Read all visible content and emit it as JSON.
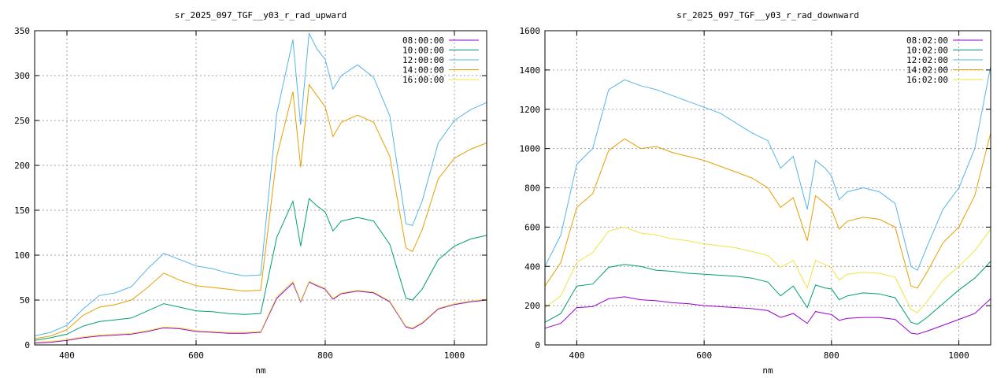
{
  "chart_data": [
    {
      "type": "line",
      "title": "sr_2025_097_TGF__y03_r_rad_upward",
      "xlabel": "nm",
      "ylabel": "",
      "xlim": [
        350,
        1050
      ],
      "ylim": [
        0,
        350
      ],
      "xticks": [
        400,
        600,
        800,
        1000
      ],
      "yticks": [
        0,
        50,
        100,
        150,
        200,
        250,
        300,
        350
      ],
      "grid": true,
      "legend": "top-right",
      "x": [
        350,
        375,
        400,
        425,
        450,
        475,
        500,
        525,
        550,
        575,
        600,
        625,
        650,
        675,
        700,
        725,
        750,
        762,
        775,
        787,
        800,
        812,
        825,
        850,
        875,
        900,
        925,
        935,
        950,
        975,
        1000,
        1025,
        1050
      ],
      "series": [
        {
          "name": "08:00:00",
          "color": "#9400d3",
          "values": [
            2,
            3,
            5,
            8,
            10,
            11,
            12,
            15,
            19,
            18,
            15,
            14,
            13,
            13,
            14,
            52,
            69,
            48,
            70,
            66,
            62,
            51,
            57,
            60,
            58,
            48,
            20,
            18,
            24,
            40,
            45,
            48,
            50
          ]
        },
        {
          "name": "10:00:00",
          "color": "#009e73",
          "values": [
            5,
            8,
            12,
            21,
            26,
            28,
            30,
            38,
            46,
            42,
            38,
            37,
            35,
            34,
            35,
            120,
            160,
            110,
            163,
            155,
            148,
            127,
            138,
            142,
            138,
            112,
            52,
            50,
            62,
            95,
            110,
            118,
            122
          ]
        },
        {
          "name": "12:00:00",
          "color": "#56b4e9",
          "values": [
            10,
            14,
            22,
            40,
            55,
            58,
            65,
            85,
            102,
            95,
            88,
            85,
            80,
            77,
            78,
            258,
            340,
            245,
            347,
            330,
            318,
            285,
            300,
            312,
            298,
            255,
            135,
            133,
            160,
            225,
            250,
            262,
            270
          ]
        },
        {
          "name": "14:00:00",
          "color": "#e69f00",
          "values": [
            7,
            10,
            17,
            33,
            42,
            45,
            50,
            64,
            80,
            72,
            66,
            64,
            62,
            60,
            61,
            210,
            282,
            198,
            290,
            278,
            265,
            232,
            248,
            256,
            248,
            210,
            108,
            104,
            128,
            185,
            208,
            218,
            225
          ]
        },
        {
          "name": "16:00:00",
          "color": "#f0e442",
          "values": [
            3,
            4,
            6,
            9,
            11,
            12,
            13,
            16,
            20,
            19,
            16,
            15,
            14,
            14,
            15,
            54,
            71,
            49,
            71,
            67,
            63,
            52,
            58,
            61,
            59,
            49,
            21,
            19,
            25,
            41,
            46,
            49,
            51
          ]
        }
      ]
    },
    {
      "type": "line",
      "title": "sr_2025_097_TGF__y03_r_rad_downward",
      "xlabel": "nm",
      "ylabel": "",
      "xlim": [
        350,
        1050
      ],
      "ylim": [
        0,
        1600
      ],
      "xticks": [
        400,
        600,
        800,
        1000
      ],
      "yticks": [
        0,
        200,
        400,
        600,
        800,
        1000,
        1200,
        1400,
        1600
      ],
      "grid": true,
      "legend": "top-right",
      "x": [
        350,
        375,
        400,
        425,
        450,
        475,
        500,
        525,
        550,
        575,
        600,
        625,
        650,
        675,
        700,
        720,
        740,
        762,
        775,
        790,
        800,
        812,
        825,
        850,
        875,
        900,
        925,
        935,
        950,
        975,
        1000,
        1025,
        1050
      ],
      "series": [
        {
          "name": "08:02:00",
          "color": "#9400d3",
          "values": [
            85,
            110,
            190,
            195,
            235,
            245,
            230,
            225,
            215,
            210,
            200,
            195,
            190,
            185,
            175,
            140,
            160,
            110,
            170,
            160,
            155,
            125,
            135,
            140,
            140,
            130,
            60,
            55,
            70,
            100,
            130,
            160,
            235
          ]
        },
        {
          "name": "10:02:00",
          "color": "#009e73",
          "values": [
            115,
            160,
            300,
            310,
            395,
            410,
            400,
            380,
            375,
            365,
            360,
            355,
            350,
            340,
            320,
            250,
            300,
            190,
            305,
            290,
            285,
            230,
            250,
            265,
            260,
            240,
            115,
            105,
            140,
            210,
            280,
            340,
            425
          ]
        },
        {
          "name": "12:02:00",
          "color": "#56b4e9",
          "values": [
            400,
            560,
            920,
            1000,
            1300,
            1350,
            1320,
            1300,
            1270,
            1240,
            1210,
            1180,
            1130,
            1080,
            1040,
            900,
            960,
            690,
            940,
            900,
            860,
            740,
            780,
            800,
            780,
            720,
            400,
            380,
            500,
            690,
            800,
            1000,
            1420
          ]
        },
        {
          "name": "14:02:00",
          "color": "#e69f00",
          "values": [
            300,
            420,
            700,
            770,
            990,
            1050,
            1000,
            1010,
            980,
            960,
            940,
            910,
            880,
            850,
            800,
            700,
            750,
            530,
            760,
            720,
            690,
            590,
            630,
            650,
            640,
            600,
            300,
            290,
            370,
            520,
            600,
            760,
            1080
          ]
        },
        {
          "name": "16:02:00",
          "color": "#f0e442",
          "values": [
            190,
            250,
            420,
            470,
            580,
            600,
            570,
            560,
            540,
            530,
            515,
            505,
            495,
            475,
            455,
            395,
            430,
            290,
            430,
            410,
            390,
            330,
            360,
            370,
            365,
            345,
            180,
            165,
            220,
            330,
            400,
            480,
            590
          ]
        }
      ]
    }
  ]
}
